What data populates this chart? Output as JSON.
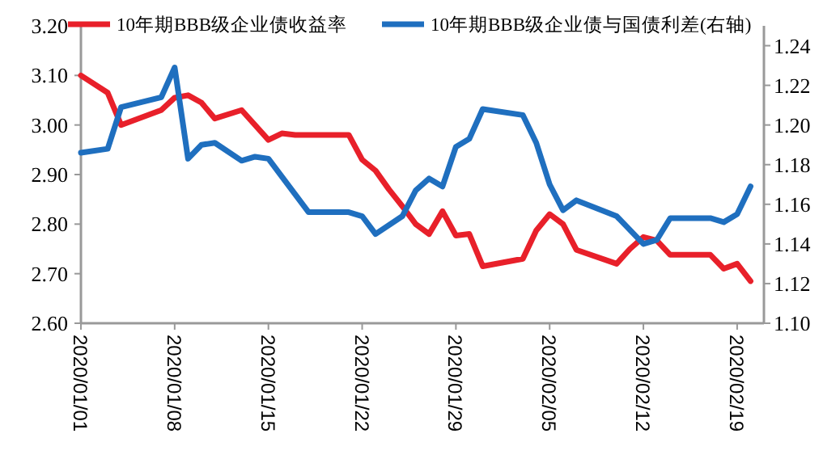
{
  "chart_data": {
    "type": "line",
    "xlim": [
      "2020-01-01",
      "2020-02-21"
    ],
    "xticks": [
      {
        "value": "2020-01-01",
        "label": "2020/01/01"
      },
      {
        "value": "2020-01-08",
        "label": "2020/01/08"
      },
      {
        "value": "2020-01-15",
        "label": "2020/01/15"
      },
      {
        "value": "2020-01-22",
        "label": "2020/01/22"
      },
      {
        "value": "2020-01-29",
        "label": "2020/01/29"
      },
      {
        "value": "2020-02-05",
        "label": "2020/02/05"
      },
      {
        "value": "2020-02-12",
        "label": "2020/02/12"
      },
      {
        "value": "2020-02-19",
        "label": "2020/02/19"
      }
    ],
    "ylim": [
      2.6,
      3.2
    ],
    "yticks": [
      {
        "value": 2.6,
        "label": "2.60"
      },
      {
        "value": 2.7,
        "label": "2.70"
      },
      {
        "value": 2.8,
        "label": "2.80"
      },
      {
        "value": 2.9,
        "label": "2.90"
      },
      {
        "value": 3.0,
        "label": "3.00"
      },
      {
        "value": 3.1,
        "label": "3.10"
      },
      {
        "value": 3.2,
        "label": "3.20"
      }
    ],
    "y2lim": [
      1.1,
      1.25
    ],
    "y2ticks": [
      {
        "value": 1.1,
        "label": "1.10"
      },
      {
        "value": 1.12,
        "label": "1.12"
      },
      {
        "value": 1.14,
        "label": "1.14"
      },
      {
        "value": 1.16,
        "label": "1.16"
      },
      {
        "value": 1.18,
        "label": "1.18"
      },
      {
        "value": 1.2,
        "label": "1.20"
      },
      {
        "value": 1.22,
        "label": "1.22"
      },
      {
        "value": 1.24,
        "label": "1.24"
      }
    ],
    "legend": "top",
    "grid": false,
    "series": [
      {
        "name": "10年期BBB级企业债收益率",
        "color": "#e8202a",
        "x": [
          "2020-01-01",
          "2020-01-03",
          "2020-01-04",
          "2020-01-07",
          "2020-01-08",
          "2020-01-09",
          "2020-01-10",
          "2020-01-11",
          "2020-01-13",
          "2020-01-15",
          "2020-01-16",
          "2020-01-17",
          "2020-01-21",
          "2020-01-22",
          "2020-01-23",
          "2020-01-24",
          "2020-01-25",
          "2020-01-26",
          "2020-01-27",
          "2020-01-28",
          "2020-01-29",
          "2020-01-30",
          "2020-01-31",
          "2020-02-03",
          "2020-02-04",
          "2020-02-05",
          "2020-02-06",
          "2020-02-07",
          "2020-02-10",
          "2020-02-11",
          "2020-02-12",
          "2020-02-13",
          "2020-02-14",
          "2020-02-17",
          "2020-02-18",
          "2020-02-19",
          "2020-02-20"
        ],
        "values": [
          3.1,
          3.065,
          3.0,
          3.03,
          3.055,
          3.06,
          3.045,
          3.013,
          3.03,
          2.97,
          2.983,
          2.98,
          2.98,
          2.93,
          2.908,
          2.87,
          2.836,
          2.8,
          2.78,
          2.826,
          2.777,
          2.78,
          2.715,
          2.73,
          2.787,
          2.82,
          2.8,
          2.748,
          2.72,
          2.75,
          2.774,
          2.767,
          2.738,
          2.738,
          2.71,
          2.72,
          2.685
        ]
      },
      {
        "name": "10年期BBB级企业债与国债利差(右轴)",
        "color": "#1f6fbf",
        "axis": "y2",
        "x": [
          "2020-01-01",
          "2020-01-03",
          "2020-01-04",
          "2020-01-07",
          "2020-01-08",
          "2020-01-09",
          "2020-01-10",
          "2020-01-11",
          "2020-01-13",
          "2020-01-14",
          "2020-01-15",
          "2020-01-18",
          "2020-01-21",
          "2020-01-22",
          "2020-01-23",
          "2020-01-25",
          "2020-01-26",
          "2020-01-27",
          "2020-01-28",
          "2020-01-29",
          "2020-01-30",
          "2020-01-31",
          "2020-02-03",
          "2020-02-04",
          "2020-02-05",
          "2020-02-06",
          "2020-02-07",
          "2020-02-10",
          "2020-02-12",
          "2020-02-13",
          "2020-02-14",
          "2020-02-17",
          "2020-02-18",
          "2020-02-19",
          "2020-02-20"
        ],
        "values": [
          1.186,
          1.188,
          1.209,
          1.214,
          1.229,
          1.183,
          1.19,
          1.191,
          1.182,
          1.184,
          1.183,
          1.156,
          1.156,
          1.154,
          1.145,
          1.154,
          1.167,
          1.173,
          1.169,
          1.189,
          1.193,
          1.208,
          1.205,
          1.191,
          1.17,
          1.157,
          1.162,
          1.154,
          1.14,
          1.142,
          1.153,
          1.153,
          1.151,
          1.155,
          1.169
        ]
      }
    ]
  }
}
